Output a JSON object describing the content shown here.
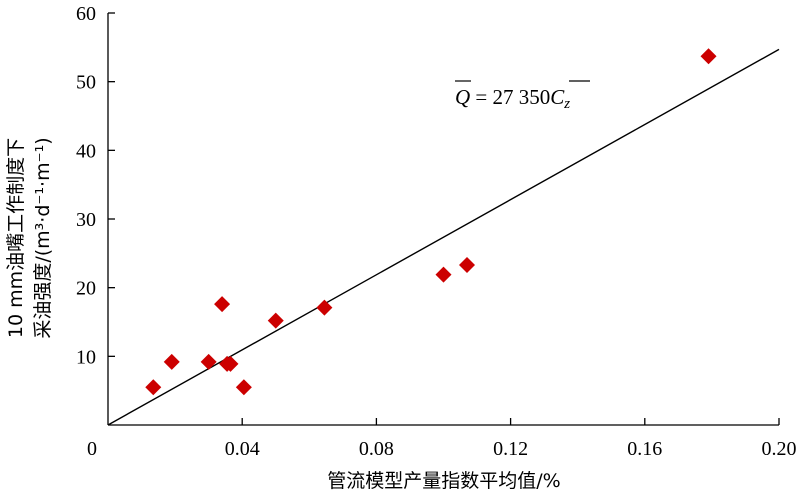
{
  "chart_data": {
    "type": "scatter",
    "xlabel": "管流模型产量指数平均值/%",
    "ylabel_line1": "10 mm油嘴工作制度下",
    "ylabel_line2": "采油强度/(m³·d⁻¹·m⁻¹)",
    "xlim": [
      0,
      0.2
    ],
    "ylim": [
      0,
      60
    ],
    "x_ticks": [
      0,
      0.04,
      0.08,
      0.12,
      0.16,
      0.2
    ],
    "x_tick_labels": [
      "0",
      "0.04",
      "0.08",
      "0.12",
      "0.16",
      "0.20"
    ],
    "y_ticks": [
      10,
      20,
      30,
      40,
      50,
      60
    ],
    "y_tick_labels": [
      "10",
      "20",
      "30",
      "40",
      "50",
      "60"
    ],
    "series": [
      {
        "marker": "diamond",
        "color": "#cc0000",
        "points": [
          {
            "x": 0.0135,
            "y": 5.5
          },
          {
            "x": 0.019,
            "y": 9.2
          },
          {
            "x": 0.03,
            "y": 9.2
          },
          {
            "x": 0.034,
            "y": 17.6
          },
          {
            "x": 0.0355,
            "y": 8.9
          },
          {
            "x": 0.0365,
            "y": 8.9
          },
          {
            "x": 0.0405,
            "y": 5.5
          },
          {
            "x": 0.05,
            "y": 15.2
          },
          {
            "x": 0.0645,
            "y": 17.1
          },
          {
            "x": 0.1,
            "y": 21.9
          },
          {
            "x": 0.107,
            "y": 23.3
          },
          {
            "x": 0.179,
            "y": 53.7
          }
        ]
      }
    ],
    "fit_line": {
      "color": "#000000",
      "slope": 273.5,
      "x_start": 0,
      "x_end": 0.2
    },
    "annotation": {
      "lhs": "Q",
      "eq": " = 27 350",
      "rhs": "C",
      "rhs_sub": "z"
    }
  }
}
